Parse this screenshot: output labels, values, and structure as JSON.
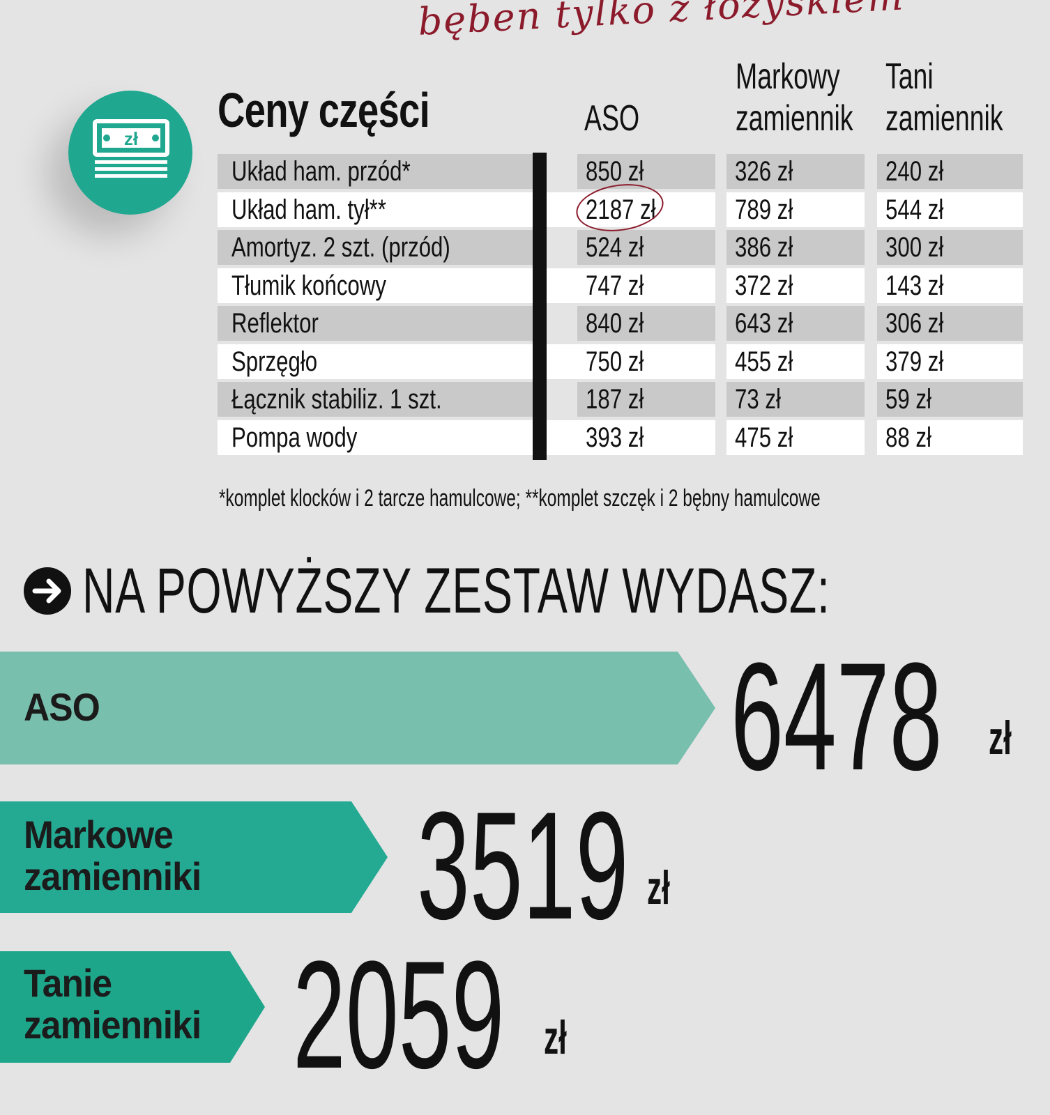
{
  "handnote": "bęben tylko z łożyskiem",
  "icon": {
    "name": "money-zloty-icon",
    "symbol": "zł",
    "color": "#1fa78f"
  },
  "table": {
    "title": "Ceny części",
    "columns": {
      "aso": "ASO",
      "markowy_line1": "Markowy",
      "markowy_line2": "zamiennik",
      "tani_line1": "Tani",
      "tani_line2": "zamiennik"
    },
    "rows": [
      {
        "name": "Układ ham. przód*",
        "aso": "850 zł",
        "markowy": "326 zł",
        "tani": "240 zł"
      },
      {
        "name": "Układ ham. tył**",
        "aso": "2187 zł",
        "markowy": "789 zł",
        "tani": "544 zł"
      },
      {
        "name": "Amortyz. 2 szt. (przód)",
        "aso": "524 zł",
        "markowy": "386 zł",
        "tani": "300 zł"
      },
      {
        "name": "Tłumik końcowy",
        "aso": "747 zł",
        "markowy": "372 zł",
        "tani": "143 zł"
      },
      {
        "name": "Reflektor",
        "aso": "840 zł",
        "markowy": "643 zł",
        "tani": "306 zł"
      },
      {
        "name": "Sprzęgło",
        "aso": "750 zł",
        "markowy": "455 zł",
        "tani": "379 zł"
      },
      {
        "name": "Łącznik stabiliz. 1 szt.",
        "aso": "187 zł",
        "markowy": "73 zł",
        "tani": "59 zł"
      },
      {
        "name": "Pompa wody",
        "aso": "393 zł",
        "markowy": "475 zł",
        "tani": "88 zł"
      }
    ],
    "footnote": "*komplet klocków i 2 tarcze hamulcowe;  **komplet szczęk i 2 bębny hamulcowe"
  },
  "summary": {
    "title": "NA POWYŻSZY ZESTAW WYDASZ:",
    "bands": [
      {
        "label_line1": "ASO",
        "label_line2": "",
        "amount": "6478",
        "unit": "zł",
        "color": "#79bfad"
      },
      {
        "label_line1": "Markowe",
        "label_line2": "zamienniki",
        "amount": "3519",
        "unit": "zł",
        "color": "#24a993"
      },
      {
        "label_line1": "Tanie",
        "label_line2": "zamienniki",
        "amount": "2059",
        "unit": "zł",
        "color": "#1ea68b"
      }
    ]
  }
}
